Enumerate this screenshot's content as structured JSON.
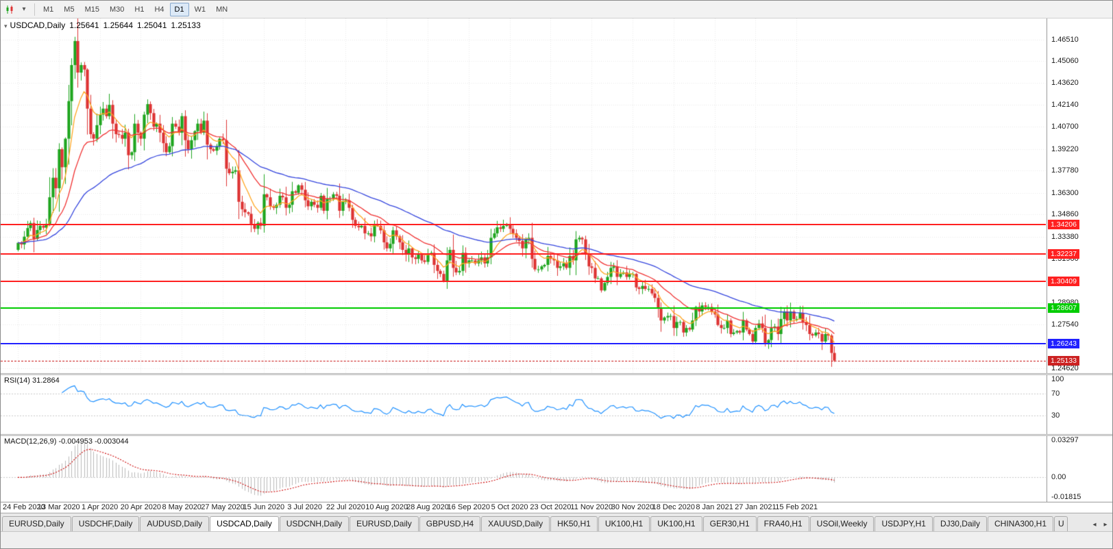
{
  "toolbar": {
    "timeframes": [
      "M1",
      "M5",
      "M15",
      "M30",
      "H1",
      "H4",
      "D1",
      "W1",
      "MN"
    ],
    "active_timeframe": "D1",
    "dropdown_icon": "▾"
  },
  "chart_header": {
    "title": "USDCAD,Daily",
    "menu_icon": "▾",
    "open": "1.25641",
    "high": "1.25644",
    "low": "1.25041",
    "close": "1.25133"
  },
  "chart_data": {
    "type": "candlestick",
    "symbol": "USDCAD",
    "timeframe": "Daily",
    "first_open": 1.325,
    "closes": [
      1.3297,
      1.3286,
      1.3338,
      1.3395,
      1.3429,
      1.3323,
      1.3382,
      1.341,
      1.3398,
      1.3422,
      1.36,
      1.373,
      1.366,
      1.392,
      1.38,
      1.399,
      1.424,
      1.448,
      1.464,
      1.443,
      1.448,
      1.445,
      1.419,
      1.402,
      1.399,
      1.408,
      1.415,
      1.419,
      1.414,
      1.4215,
      1.409,
      1.402,
      1.4015,
      1.399,
      1.403,
      1.388,
      1.39,
      1.409,
      1.403,
      1.399,
      1.415,
      1.422,
      1.416,
      1.407,
      1.409,
      1.403,
      1.396,
      1.39,
      1.394,
      1.409,
      1.407,
      1.403,
      1.414,
      1.398,
      1.392,
      1.398,
      1.404,
      1.409,
      1.403,
      1.411,
      1.395,
      1.392,
      1.391,
      1.394,
      1.399,
      1.398,
      1.379,
      1.376,
      1.377,
      1.378,
      1.357,
      1.352,
      1.35,
      1.349,
      1.342,
      1.339,
      1.343,
      1.341,
      1.362,
      1.36,
      1.354,
      1.353,
      1.355,
      1.361,
      1.36,
      1.353,
      1.355,
      1.364,
      1.363,
      1.368,
      1.365,
      1.358,
      1.354,
      1.357,
      1.355,
      1.353,
      1.361,
      1.351,
      1.359,
      1.359,
      1.362,
      1.361,
      1.351,
      1.357,
      1.358,
      1.353,
      1.345,
      1.341,
      1.34,
      1.341,
      1.336,
      1.336,
      1.334,
      1.342,
      1.341,
      1.338,
      1.33,
      1.326,
      1.329,
      1.338,
      1.334,
      1.33,
      1.325,
      1.322,
      1.326,
      1.32,
      1.319,
      1.322,
      1.318,
      1.317,
      1.322,
      1.323,
      1.315,
      1.311,
      1.309,
      1.304,
      1.318,
      1.325,
      1.313,
      1.31,
      1.311,
      1.323,
      1.316,
      1.318,
      1.318,
      1.316,
      1.318,
      1.32,
      1.316,
      1.32,
      1.333,
      1.336,
      1.34,
      1.339,
      1.341,
      1.342,
      1.339,
      1.336,
      1.333,
      1.331,
      1.326,
      1.332,
      1.333,
      1.319,
      1.312,
      1.312,
      1.314,
      1.315,
      1.321,
      1.319,
      1.318,
      1.313,
      1.314,
      1.316,
      1.313,
      1.321,
      1.318,
      1.332,
      1.333,
      1.332,
      1.322,
      1.314,
      1.313,
      1.306,
      1.306,
      1.298,
      1.303,
      1.307,
      1.313,
      1.314,
      1.307,
      1.309,
      1.31,
      1.307,
      1.309,
      1.309,
      1.3,
      1.299,
      1.301,
      1.299,
      1.299,
      1.296,
      1.293,
      1.286,
      1.278,
      1.28,
      1.281,
      1.281,
      1.273,
      1.277,
      1.277,
      1.27,
      1.273,
      1.272,
      1.278,
      1.287,
      1.284,
      1.288,
      1.287,
      1.287,
      1.284,
      1.282,
      1.275,
      1.273,
      1.273,
      1.278,
      1.269,
      1.27,
      1.271,
      1.27,
      1.278,
      1.272,
      1.269,
      1.264,
      1.273,
      1.276,
      1.273,
      1.263,
      1.265,
      1.273,
      1.274,
      1.269,
      1.279,
      1.284,
      1.278,
      1.284,
      1.279,
      1.279,
      1.283,
      1.277,
      1.275,
      1.269,
      1.268,
      1.27,
      1.269,
      1.264,
      1.269,
      1.268,
      1.2564,
      1.25133
    ],
    "label_every": 13,
    "x_labels": [
      "24 Feb 2020",
      "13 Mar 2020",
      "1 Apr 2020",
      "20 Apr 2020",
      "8 May 2020",
      "27 May 2020",
      "15 Jun 2020",
      "3 Jul 2020",
      "22 Jul 2020",
      "10 Aug 2020",
      "28 Aug 2020",
      "16 Sep 2020",
      "5 Oct 2020",
      "23 Oct 2020",
      "11 Nov 2020",
      "30 Nov 2020",
      "18 Dec 2020",
      "8 Jan 2021",
      "27 Jan 2021",
      "15 Feb 2021"
    ],
    "y_axis_ticks": [
      "1.46510",
      "1.45060",
      "1.43620",
      "1.42140",
      "1.40700",
      "1.39220",
      "1.37780",
      "1.36300",
      "1.34860",
      "1.33380",
      "1.31900",
      "1.30460",
      "1.28980",
      "1.27540",
      "1.26060",
      "1.24620"
    ],
    "price_scale": {
      "max": 1.479,
      "min": 1.243
    },
    "hlines": [
      {
        "price": 1.34206,
        "label": "1.34206",
        "color": "#FF2020"
      },
      {
        "price": 1.32237,
        "label": "1.32237",
        "color": "#FF2020"
      },
      {
        "price": 1.30409,
        "label": "1.30409",
        "color": "#FF2020"
      },
      {
        "price": 1.28607,
        "label": "1.28607",
        "color": "#00CC00"
      },
      {
        "price": 1.26243,
        "label": "1.26243",
        "color": "#2020FF"
      }
    ],
    "current_price": {
      "price": 1.25133,
      "label": "1.25133",
      "color": "#CC2222"
    },
    "indicators": {
      "rsi": {
        "period": 14,
        "label": "RSI(14) 31.2864",
        "levels": [
          100,
          70,
          30
        ]
      },
      "macd": {
        "fast": 12,
        "slow": 26,
        "signal": 9,
        "label": "MACD(12,26,9) -0.004953 -0.003044",
        "axis_ticks": [
          "0.03297",
          "0.00",
          "-0.01815"
        ],
        "scale": {
          "max": 0.033,
          "min": -0.0185
        }
      },
      "ma": [
        {
          "period": 8,
          "color": "#FFA520"
        },
        {
          "period": 21,
          "color": "#F03030"
        },
        {
          "period": 55,
          "color": "#3344DD"
        }
      ]
    },
    "colors": {
      "up": "#1EA51E",
      "down": "#DD3333",
      "bg": "#FFFFFF",
      "grid": "#E7E7E7",
      "rsi": "#1E90FF",
      "rsi_level": "#C8C8C8",
      "macd_hist": "#B8B8B8",
      "macd_signal": "#CC0000"
    }
  },
  "tabs": {
    "items": [
      "EURUSD,Daily",
      "USDCHF,Daily",
      "AUDUSD,Daily",
      "USDCAD,Daily",
      "USDCNH,Daily",
      "EURUSD,Daily",
      "GBPUSD,H4",
      "XAUUSD,Daily",
      "HK50,H1",
      "UK100,H1",
      "UK100,H1",
      "GER30,H1",
      "FRA40,H1",
      "USOil,Weekly",
      "USDJPY,H1",
      "DJ30,Daily",
      "CHINA300,H1"
    ],
    "active_index": 3,
    "overflow_tab": "U",
    "scroll_left_icon": "◂",
    "scroll_right_icon": "▸"
  }
}
